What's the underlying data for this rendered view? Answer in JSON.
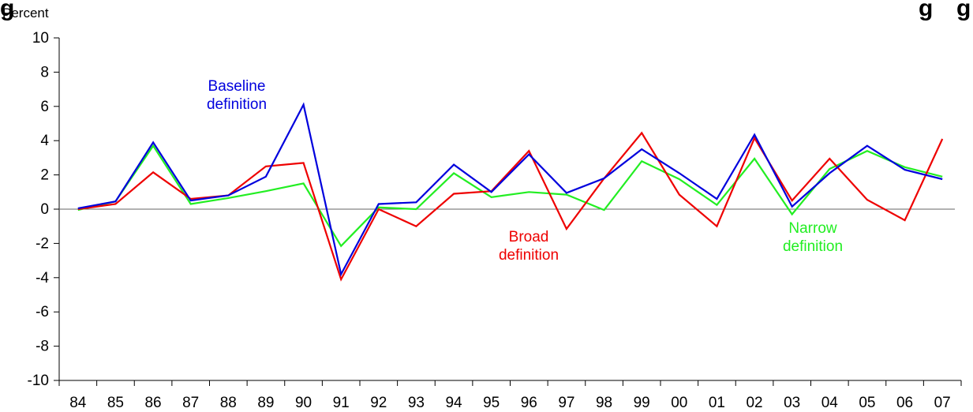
{
  "chart_data": {
    "type": "line",
    "title_left_fragment": "g",
    "title_right_fragment": "g",
    "title_far_right_fragment": "g",
    "ylabel": "Percent",
    "ylim": [
      -10,
      10
    ],
    "yticks": [
      -10,
      -8,
      -6,
      -4,
      -2,
      0,
      2,
      4,
      6,
      8,
      10
    ],
    "categories": [
      "84",
      "85",
      "86",
      "87",
      "88",
      "89",
      "90",
      "91",
      "92",
      "93",
      "94",
      "95",
      "96",
      "97",
      "98",
      "99",
      "00",
      "01",
      "02",
      "03",
      "04",
      "05",
      "06",
      "07"
    ],
    "grid": false,
    "zero_line": true,
    "series": [
      {
        "key": "baseline",
        "color": "#0000dd",
        "values": [
          0.05,
          0.45,
          3.9,
          0.5,
          0.8,
          1.9,
          6.1,
          -3.8,
          0.3,
          0.4,
          2.6,
          1.0,
          3.2,
          0.95,
          1.8,
          3.5,
          2.1,
          0.6,
          4.35,
          0.15,
          2.1,
          3.7,
          2.3,
          1.75
        ]
      },
      {
        "key": "broad",
        "color": "#ee0000",
        "values": [
          0.0,
          0.3,
          2.15,
          0.6,
          0.8,
          2.5,
          2.7,
          -4.1,
          0.0,
          -1.0,
          0.9,
          1.05,
          3.4,
          -1.15,
          1.8,
          4.45,
          0.85,
          -1.0,
          4.15,
          0.5,
          2.95,
          0.55,
          -0.65,
          4.1
        ]
      },
      {
        "key": "narrow",
        "color": "#22ee22",
        "values": [
          -0.05,
          0.45,
          3.7,
          0.3,
          0.65,
          1.05,
          1.5,
          -2.15,
          0.1,
          0.0,
          2.1,
          0.7,
          1.0,
          0.85,
          -0.05,
          2.8,
          1.75,
          0.25,
          2.95,
          -0.3,
          2.35,
          3.4,
          2.45,
          1.9
        ]
      }
    ],
    "annotations": [
      {
        "series": "baseline",
        "lines": [
          "Baseline",
          "definition"
        ],
        "color": "#0000dd"
      },
      {
        "series": "broad",
        "lines": [
          "Broad",
          "definition"
        ],
        "color": "#ee0000"
      },
      {
        "series": "narrow",
        "lines": [
          "Narrow",
          "definition"
        ],
        "color": "#22ee22"
      }
    ]
  }
}
